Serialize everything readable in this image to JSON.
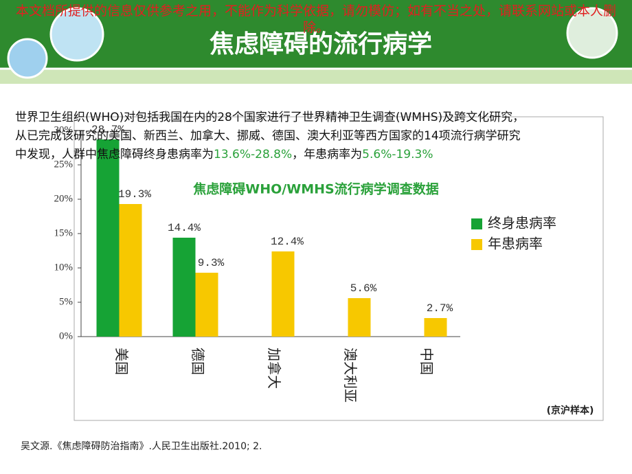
{
  "header": {
    "title": "焦虑障碍的流行病学",
    "watermark": "本文档所提供的信息仅供参考之用，不能作为科学依据，请勿模仿；如有不当之处，请联系网站或本人删除。"
  },
  "body": {
    "lines": [
      "世界卫生组织(WHO)对包括我国在内的28个国家进行了世界精神卫生调查(WMHS)及跨文化研究，",
      "从已完成该研究的美国、新西兰、加拿大、挪威、德国、澳大利亚等西方国家的14项流行病学研究"
    ],
    "last_line": [
      "中发现，人群中焦虑障碍终身患病率为",
      "13.6%-28.8%",
      "，年患病率为",
      "5.6%-19.3%"
    ]
  },
  "chart_data": {
    "type": "bar",
    "title": "焦虑障碍WHO/WMHS流行病学调查数据",
    "note": "(京沪样本)",
    "categories": [
      "美国",
      "德国",
      "加拿大",
      "澳大利亚",
      "中国"
    ],
    "series": [
      {
        "name": "终身患病率",
        "color": "#16a335",
        "values": [
          28.7,
          14.4,
          null,
          null,
          null
        ],
        "value_labels": [
          "28.7%",
          "14.4%",
          null,
          null,
          null
        ]
      },
      {
        "name": "年患病率",
        "color": "#f7c800",
        "values": [
          19.3,
          9.3,
          12.4,
          5.6,
          2.7
        ],
        "value_labels": [
          "19.3%",
          "9.3%",
          "12.4%",
          "5.6%",
          "2.7%"
        ]
      }
    ],
    "ylim": [
      0,
      30
    ],
    "yticks": [
      {
        "value": 0,
        "label": "0%"
      },
      {
        "value": 5,
        "label": "5%"
      },
      {
        "value": 10,
        "label": "10%"
      },
      {
        "value": 15,
        "label": "15%"
      },
      {
        "value": 20,
        "label": "20%"
      },
      {
        "value": 25,
        "label": "25%"
      },
      {
        "value": 30,
        "label": "30%"
      }
    ],
    "grid": false,
    "legend": "right"
  },
  "footer": {
    "citation": "吴文源.《焦虑障碍防治指南》.人民卫生出版社.2010; 2."
  }
}
